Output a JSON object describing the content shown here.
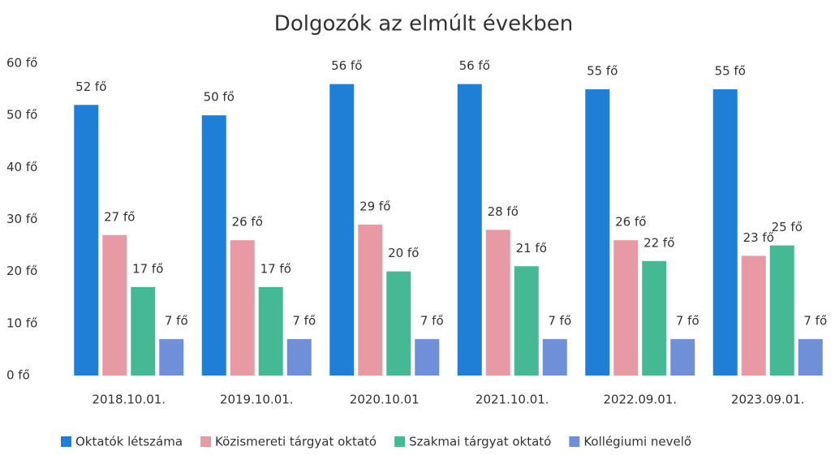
{
  "chart_data": {
    "type": "bar",
    "title": "Dolgozók az elmúlt években",
    "categories": [
      "2018.10.01.",
      "2019.10.01.",
      "2020.10.01",
      "2021.10.01.",
      "2022.09.01.",
      "2023.09.01."
    ],
    "series": [
      {
        "name": "Oktatók létszáma",
        "color": "#1f7fd6",
        "values": [
          52,
          50,
          56,
          56,
          55,
          55
        ],
        "value_labels": [
          "52 fő",
          "50 fő",
          "56 fő",
          "56 fő",
          "55 fő",
          "55 fő"
        ]
      },
      {
        "name": "Közismereti tárgyat oktató",
        "color": "#e89aa4",
        "values": [
          27,
          26,
          29,
          28,
          26,
          23
        ],
        "value_labels": [
          "27 fő",
          "26 fő",
          "29 fő",
          "28 fő",
          "26 fő",
          "23 fő"
        ]
      },
      {
        "name": "Szakmai tárgyat oktató",
        "color": "#45b894",
        "values": [
          17,
          17,
          20,
          21,
          22,
          25
        ],
        "value_labels": [
          "17 fő",
          "17 fő",
          "20 fő",
          "21 fő",
          "22 fő",
          "25 fő"
        ]
      },
      {
        "name": "Kollégiumi nevelő",
        "color": "#6f8fd8",
        "values": [
          7,
          7,
          7,
          7,
          7,
          7
        ],
        "value_labels": [
          "7 fő",
          "7 fő",
          "7 fő",
          "7 fő",
          "7 fő",
          "7 fő"
        ]
      }
    ],
    "ylim": [
      0,
      60
    ],
    "yticks": [
      {
        "value": 0,
        "label": "0 fő"
      },
      {
        "value": 10,
        "label": "10 fő"
      },
      {
        "value": 20,
        "label": "20 fő"
      },
      {
        "value": 30,
        "label": "30 fő"
      },
      {
        "value": 40,
        "label": "40 fő"
      },
      {
        "value": 50,
        "label": "50 fő"
      },
      {
        "value": 60,
        "label": "60 fő"
      }
    ],
    "grid": false,
    "legend": "bottom"
  }
}
